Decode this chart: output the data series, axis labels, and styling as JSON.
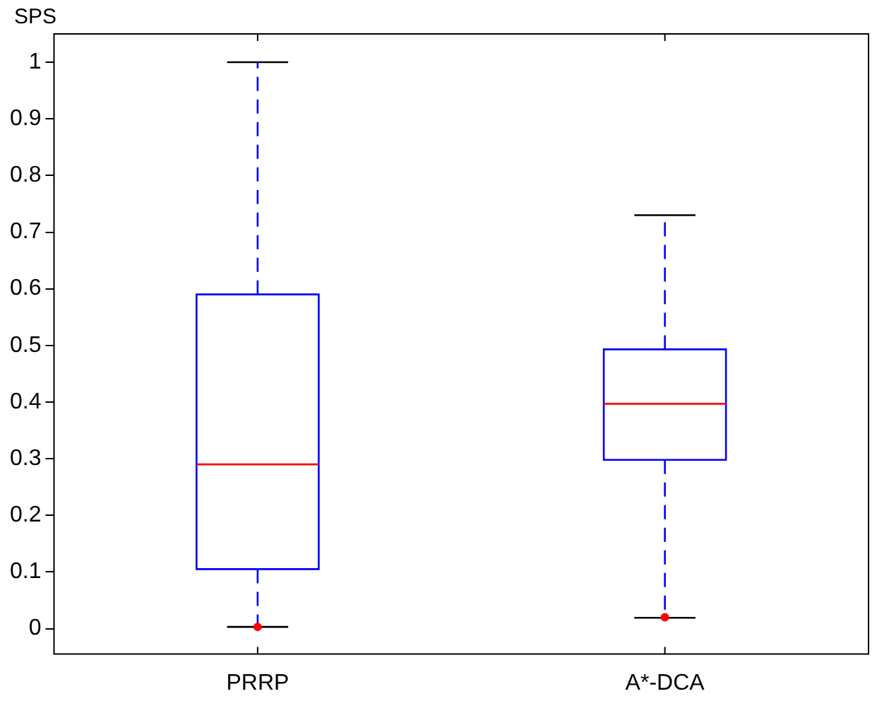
{
  "chart_data": {
    "type": "box",
    "ylabel": "SPS",
    "categories": [
      "PRRP",
      "A*-DCA"
    ],
    "series": [
      {
        "color": "#0000ff",
        "boxes": [
          {
            "low": 0.003,
            "q1": 0.105,
            "median": 0.29,
            "q3": 0.59,
            "high": 1.0,
            "outliers": [
              0.003
            ]
          },
          {
            "low": 0.019,
            "q1": 0.298,
            "median": 0.397,
            "q3": 0.493,
            "high": 0.73,
            "outliers": [
              0.02
            ]
          }
        ]
      }
    ],
    "ylim": [
      -0.045,
      1.05
    ],
    "yticks": [
      0,
      0.1,
      0.2,
      0.3,
      0.4,
      0.5,
      0.6,
      0.7,
      0.8,
      0.9,
      1
    ],
    "line_style": "dashed",
    "legend": false
  }
}
